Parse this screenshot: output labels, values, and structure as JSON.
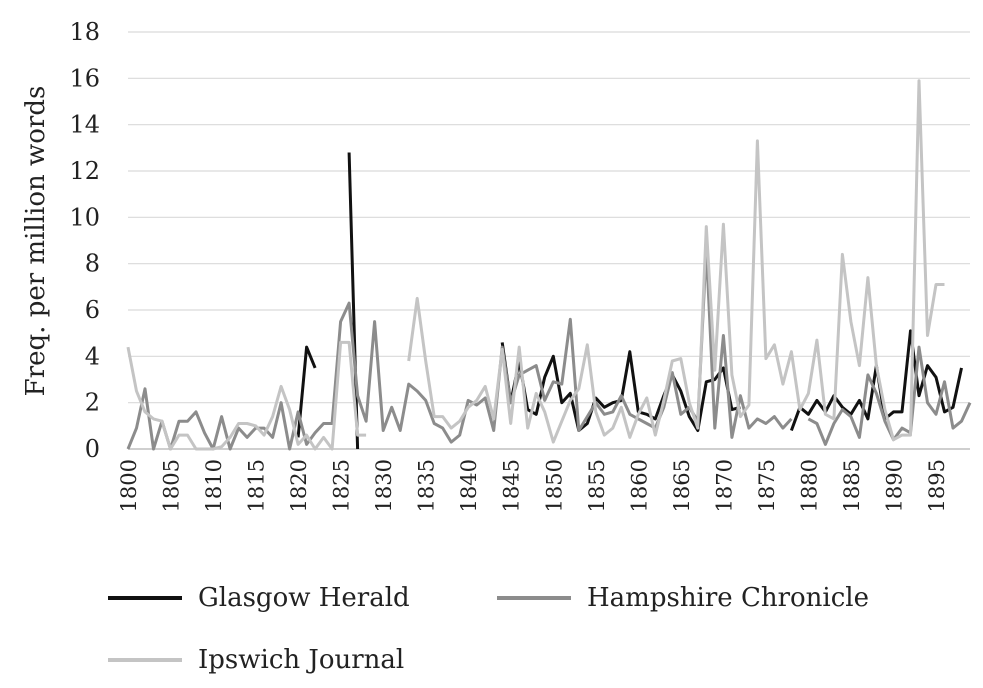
{
  "chart_data": {
    "type": "line",
    "title": "",
    "xlabel": "",
    "ylabel": "Freq. per million words",
    "xlim": [
      1800,
      1899
    ],
    "ylim": [
      0,
      18
    ],
    "y_ticks": [
      0,
      2,
      4,
      6,
      8,
      10,
      12,
      14,
      16,
      18
    ],
    "x_tick_labels": [
      "1800",
      "1805",
      "1810",
      "1815",
      "1820",
      "1825",
      "1830",
      "1835",
      "1840",
      "1845",
      "1850",
      "1855",
      "1860",
      "1865",
      "1870",
      "1875",
      "1880",
      "1885",
      "1890",
      "1895"
    ],
    "grid": "horizontal",
    "legend_position": "bottom",
    "series": [
      {
        "name": "Glasgow Herald",
        "color": "#111111",
        "points": [
          [
            1820,
            0.5
          ],
          [
            1821,
            4.4
          ],
          [
            1822,
            3.5
          ],
          [
            null,
            null
          ],
          [
            1826,
            12.8
          ],
          [
            1827,
            0
          ],
          [
            null,
            null
          ],
          [
            1844,
            4.6
          ],
          [
            1845,
            2.0
          ],
          [
            1846,
            3.8
          ],
          [
            1847,
            1.7
          ],
          [
            1848,
            1.5
          ],
          [
            1849,
            3.1
          ],
          [
            1850,
            4.0
          ],
          [
            1851,
            2.0
          ],
          [
            1852,
            2.4
          ],
          [
            1853,
            0.8
          ],
          [
            1854,
            1.1
          ],
          [
            1855,
            2.2
          ],
          [
            1856,
            1.8
          ],
          [
            1857,
            2.0
          ],
          [
            1858,
            2.1
          ],
          [
            1859,
            4.2
          ],
          [
            1860,
            1.6
          ],
          [
            1861,
            1.5
          ],
          [
            1862,
            1.3
          ],
          [
            1863,
            2.3
          ],
          [
            1864,
            3.2
          ],
          [
            1865,
            2.5
          ],
          [
            1866,
            1.4
          ],
          [
            1867,
            0.8
          ],
          [
            1868,
            2.9
          ],
          [
            1869,
            3.0
          ],
          [
            1870,
            3.5
          ],
          [
            1871,
            1.7
          ],
          [
            1872,
            1.8
          ],
          [
            null,
            null
          ],
          [
            1878,
            0.8
          ],
          [
            1879,
            1.8
          ],
          [
            1880,
            1.5
          ],
          [
            1881,
            2.1
          ],
          [
            1882,
            1.6
          ],
          [
            1883,
            2.3
          ],
          [
            1884,
            1.8
          ],
          [
            1885,
            1.5
          ],
          [
            1886,
            2.1
          ],
          [
            1887,
            1.3
          ],
          [
            1888,
            3.6
          ],
          [
            1889,
            1.3
          ],
          [
            1890,
            1.6
          ],
          [
            1891,
            1.6
          ],
          [
            1892,
            5.1
          ],
          [
            1893,
            2.3
          ],
          [
            1894,
            3.6
          ],
          [
            1895,
            3.1
          ],
          [
            1896,
            1.6
          ],
          [
            1897,
            1.8
          ],
          [
            1898,
            3.5
          ]
        ]
      },
      {
        "name": "Hampshire Chronicle",
        "color": "#8c8c8c",
        "points": [
          [
            1800,
            0
          ],
          [
            1801,
            0.9
          ],
          [
            1802,
            2.6
          ],
          [
            1803,
            0
          ],
          [
            1804,
            1.2
          ],
          [
            1805,
            0
          ],
          [
            1806,
            1.2
          ],
          [
            1807,
            1.2
          ],
          [
            1808,
            1.6
          ],
          [
            1809,
            0.7
          ],
          [
            1810,
            0
          ],
          [
            1811,
            1.4
          ],
          [
            1812,
            0
          ],
          [
            1813,
            0.9
          ],
          [
            1814,
            0.5
          ],
          [
            1815,
            0.9
          ],
          [
            1816,
            0.9
          ],
          [
            1817,
            0.5
          ],
          [
            1818,
            2.0
          ],
          [
            1819,
            0
          ],
          [
            1820,
            1.6
          ],
          [
            1821,
            0.2
          ],
          [
            1822,
            0.7
          ],
          [
            1823,
            1.1
          ],
          [
            1824,
            1.1
          ],
          [
            1825,
            5.5
          ],
          [
            1826,
            6.3
          ],
          [
            1827,
            2.3
          ],
          [
            1828,
            1.2
          ],
          [
            1829,
            5.5
          ],
          [
            1830,
            0.8
          ],
          [
            1831,
            1.8
          ],
          [
            1832,
            0.8
          ],
          [
            1833,
            2.8
          ],
          [
            1834,
            2.5
          ],
          [
            1835,
            2.1
          ],
          [
            1836,
            1.1
          ],
          [
            1837,
            0.9
          ],
          [
            1838,
            0.3
          ],
          [
            1839,
            0.6
          ],
          [
            1840,
            2.1
          ],
          [
            1841,
            1.9
          ],
          [
            1842,
            2.2
          ],
          [
            1843,
            0.8
          ],
          [
            1844,
            4.4
          ],
          [
            1845,
            2.0
          ],
          [
            1846,
            3.2
          ],
          [
            1847,
            3.4
          ],
          [
            1848,
            3.6
          ],
          [
            1849,
            2.1
          ],
          [
            1850,
            2.9
          ],
          [
            1851,
            2.8
          ],
          [
            1852,
            5.6
          ],
          [
            1853,
            0.8
          ],
          [
            1854,
            1.4
          ],
          [
            1855,
            2.0
          ],
          [
            1856,
            1.5
          ],
          [
            1857,
            1.6
          ],
          [
            1858,
            2.3
          ],
          [
            1859,
            1.5
          ],
          [
            1860,
            1.3
          ],
          [
            1861,
            1.1
          ],
          [
            1862,
            0.9
          ],
          [
            1863,
            1.8
          ],
          [
            1864,
            3.3
          ],
          [
            1865,
            1.5
          ],
          [
            1866,
            1.8
          ],
          [
            1867,
            1.2
          ],
          [
            1868,
            8.7
          ],
          [
            1869,
            0.9
          ],
          [
            1870,
            4.9
          ],
          [
            1871,
            0.5
          ],
          [
            1872,
            2.3
          ],
          [
            1873,
            0.9
          ],
          [
            1874,
            1.3
          ],
          [
            1875,
            1.1
          ],
          [
            1876,
            1.4
          ],
          [
            1877,
            0.9
          ],
          [
            1878,
            1.3
          ],
          [
            null,
            null
          ],
          [
            1880,
            1.3
          ],
          [
            1881,
            1.1
          ],
          [
            1882,
            0.2
          ],
          [
            1883,
            1.1
          ],
          [
            1884,
            1.7
          ],
          [
            1885,
            1.4
          ],
          [
            1886,
            0.5
          ],
          [
            1887,
            3.2
          ],
          [
            1888,
            2.4
          ],
          [
            1889,
            1.2
          ],
          [
            1890,
            0.4
          ],
          [
            1891,
            0.9
          ],
          [
            1892,
            0.7
          ],
          [
            1893,
            4.4
          ],
          [
            1894,
            2.0
          ],
          [
            1895,
            1.5
          ],
          [
            1896,
            2.9
          ],
          [
            1897,
            0.9
          ],
          [
            1898,
            1.2
          ],
          [
            1899,
            2.0
          ]
        ]
      },
      {
        "name": "Ipswich Journal",
        "color": "#c4c4c4",
        "points": [
          [
            1800,
            4.4
          ],
          [
            1801,
            2.5
          ],
          [
            1802,
            1.6
          ],
          [
            1803,
            1.3
          ],
          [
            1804,
            1.2
          ],
          [
            1805,
            0
          ],
          [
            1806,
            0.6
          ],
          [
            1807,
            0.6
          ],
          [
            1808,
            0
          ],
          [
            1809,
            0
          ],
          [
            1810,
            0
          ],
          [
            1811,
            0.1
          ],
          [
            1812,
            0.5
          ],
          [
            1813,
            1.1
          ],
          [
            1814,
            1.1
          ],
          [
            1815,
            1.0
          ],
          [
            1816,
            0.6
          ],
          [
            1817,
            1.4
          ],
          [
            1818,
            2.7
          ],
          [
            1819,
            1.7
          ],
          [
            1820,
            0.2
          ],
          [
            1821,
            0.6
          ],
          [
            1822,
            0
          ],
          [
            1823,
            0.5
          ],
          [
            1824,
            0
          ],
          [
            1825,
            4.6
          ],
          [
            1826,
            4.6
          ],
          [
            1827,
            0.6
          ],
          [
            1828,
            0.6
          ],
          [
            null,
            null
          ],
          [
            1833,
            3.8
          ],
          [
            1834,
            6.5
          ],
          [
            1835,
            3.8
          ],
          [
            1836,
            1.4
          ],
          [
            1837,
            1.4
          ],
          [
            1838,
            0.9
          ],
          [
            1839,
            1.2
          ],
          [
            1840,
            1.8
          ],
          [
            1841,
            2.1
          ],
          [
            1842,
            2.7
          ],
          [
            1843,
            1.3
          ],
          [
            1844,
            4.3
          ],
          [
            1845,
            1.1
          ],
          [
            1846,
            4.4
          ],
          [
            1847,
            0.9
          ],
          [
            1848,
            2.4
          ],
          [
            1849,
            1.6
          ],
          [
            1850,
            0.3
          ],
          [
            1851,
            1.2
          ],
          [
            1852,
            2.1
          ],
          [
            1853,
            2.6
          ],
          [
            1854,
            4.5
          ],
          [
            1855,
            1.6
          ],
          [
            1856,
            0.6
          ],
          [
            1857,
            0.9
          ],
          [
            1858,
            1.8
          ],
          [
            1859,
            0.5
          ],
          [
            1860,
            1.5
          ],
          [
            1861,
            2.2
          ],
          [
            1862,
            0.6
          ],
          [
            1863,
            2.1
          ],
          [
            1864,
            3.8
          ],
          [
            1865,
            3.9
          ],
          [
            1866,
            2.0
          ],
          [
            1867,
            0.9
          ],
          [
            1868,
            9.6
          ],
          [
            1869,
            3.4
          ],
          [
            1870,
            9.7
          ],
          [
            1871,
            3.2
          ],
          [
            1872,
            1.4
          ],
          [
            1873,
            1.9
          ],
          [
            1874,
            13.3
          ],
          [
            1875,
            3.9
          ],
          [
            1876,
            4.5
          ],
          [
            1877,
            2.8
          ],
          [
            1878,
            4.2
          ],
          [
            1879,
            1.7
          ],
          [
            1880,
            2.4
          ],
          [
            1881,
            4.7
          ],
          [
            1882,
            1.5
          ],
          [
            1883,
            1.3
          ],
          [
            1884,
            8.4
          ],
          [
            1885,
            5.5
          ],
          [
            1886,
            3.6
          ],
          [
            1887,
            7.4
          ],
          [
            1888,
            3.6
          ],
          [
            1889,
            1.7
          ],
          [
            1890,
            0.4
          ],
          [
            1891,
            0.6
          ],
          [
            1892,
            0.6
          ],
          [
            1893,
            15.9
          ],
          [
            1894,
            4.9
          ],
          [
            1895,
            7.1
          ],
          [
            1896,
            7.1
          ]
        ]
      }
    ]
  }
}
